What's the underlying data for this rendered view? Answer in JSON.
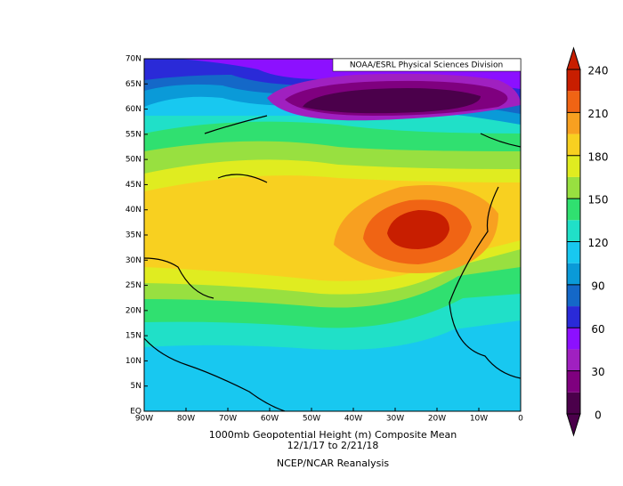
{
  "credit": "NOAA/ESRL Physical Sciences Division",
  "lat_labels": [
    "70N",
    "65N",
    "60N",
    "55N",
    "50N",
    "45N",
    "40N",
    "35N",
    "30N",
    "25N",
    "20N",
    "15N",
    "10N",
    "5N",
    "EQ"
  ],
  "lon_labels": [
    "90W",
    "80W",
    "70W",
    "60W",
    "50W",
    "40W",
    "30W",
    "20W",
    "10W",
    "0"
  ],
  "title": [
    "1000mb Geopotential Height (m) Composite Mean",
    "12/1/17  to 2/21/18"
  ],
  "source": "NCEP/NCAR Reanalysis",
  "colorbar": {
    "ticks": [
      0,
      30,
      60,
      90,
      120,
      150,
      180,
      210,
      240
    ],
    "range": [
      0,
      240
    ],
    "colors": [
      "#4b004b",
      "#7f007f",
      "#a020c0",
      "#8c10ff",
      "#2a2ad8",
      "#1468c8",
      "#0a9ad8",
      "#18c8f0",
      "#20e0c8",
      "#30e070",
      "#98e040",
      "#e0ec20",
      "#f8d020",
      "#f8a020",
      "#f06414",
      "#c81e00"
    ]
  }
}
